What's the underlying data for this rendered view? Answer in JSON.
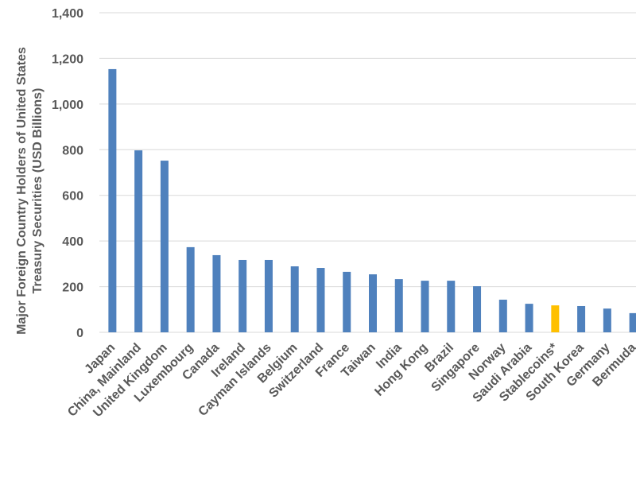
{
  "chart_data": {
    "type": "bar",
    "ylabel": [
      "Major Foreign Country Holders of United States",
      "Treasury Securities  (USD Billions)"
    ],
    "categories": [
      "Japan",
      "China, Mainland",
      "United Kingdom",
      "Luxembourg",
      "Canada",
      "Ireland",
      "Cayman Islands",
      "Belgium",
      "Switzerland",
      "France",
      "Taiwan",
      "India",
      "Hong Kong",
      "Brazil",
      "Singapore",
      "Norway",
      "Saudi Arabia",
      "Stablecoins*",
      "South Korea",
      "Germany",
      "Bermuda"
    ],
    "values": [
      1153,
      797,
      752,
      373,
      338,
      317,
      317,
      289,
      282,
      265,
      254,
      233,
      226,
      226,
      202,
      143,
      125,
      118,
      115,
      104,
      84
    ],
    "colors": [
      "#4f81bd",
      "#4f81bd",
      "#4f81bd",
      "#4f81bd",
      "#4f81bd",
      "#4f81bd",
      "#4f81bd",
      "#4f81bd",
      "#4f81bd",
      "#4f81bd",
      "#4f81bd",
      "#4f81bd",
      "#4f81bd",
      "#4f81bd",
      "#4f81bd",
      "#4f81bd",
      "#4f81bd",
      "#ffc000",
      "#4f81bd",
      "#4f81bd",
      "#4f81bd"
    ],
    "ylim": [
      0,
      1400
    ],
    "yticks": [
      0,
      200,
      400,
      600,
      800,
      {
        "value": 1000,
        "label": "1,000"
      },
      {
        "value": 1200,
        "label": "1,200"
      },
      {
        "value": 1400,
        "label": "1,400"
      }
    ],
    "grid": true
  }
}
